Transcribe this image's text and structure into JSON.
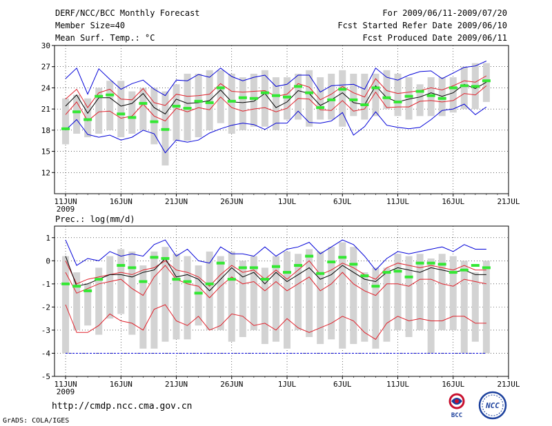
{
  "header": {
    "title": "DERF/NCC/BCC Monthly Forecast",
    "member_size": "Member Size=40",
    "variable": "Mean Surf. Temp.: °C",
    "period": "For 2009/06/11-2009/07/20",
    "started": "Fcst Started Refer Date 2009/06/10",
    "produced": "Fcst Produced Date 2009/06/11"
  },
  "footer": {
    "url": "http://cmdp.ncc.cma.gov.cn",
    "credit": "GrADS: COLA/IGES"
  },
  "logos": {
    "bcc_text": "BCC",
    "ncc_text": "NCC"
  },
  "colors": {
    "gray_bar": "#d3d3d3",
    "green_mark": "#33e833",
    "red_line": "#e0202a",
    "blue_line": "#0000d8",
    "black_line": "#000000",
    "grid": "#000000"
  },
  "chart_data": [
    {
      "type": "line",
      "title": "Mean Surf. Temp.: °C",
      "ylim": [
        9,
        30
      ],
      "yticks": [
        12,
        15,
        18,
        21,
        24,
        27,
        30
      ],
      "xticks": [
        {
          "day": 0,
          "label": "11JUN",
          "sub": "2009"
        },
        {
          "day": 5,
          "label": "16JUN"
        },
        {
          "day": 10,
          "label": "21JUN"
        },
        {
          "day": 15,
          "label": "26JUN"
        },
        {
          "day": 20,
          "label": "1JUL"
        },
        {
          "day": 25,
          "label": "6JUL"
        },
        {
          "day": 30,
          "label": "11JUL"
        },
        {
          "day": 35,
          "label": "16JUL"
        },
        {
          "day": 40,
          "label": "21JUL"
        }
      ],
      "x": [
        0,
        1,
        2,
        3,
        4,
        5,
        6,
        7,
        8,
        9,
        10,
        11,
        12,
        13,
        14,
        15,
        16,
        17,
        18,
        19,
        20,
        21,
        22,
        23,
        24,
        25,
        26,
        27,
        28,
        29,
        30,
        31,
        32,
        33,
        34,
        35,
        36,
        37,
        38
      ],
      "bar_low": [
        16.0,
        17.5,
        17.0,
        17.5,
        18.0,
        17.0,
        17.5,
        18.0,
        16.0,
        13.0,
        16.5,
        16.5,
        17.0,
        18.0,
        19.0,
        17.5,
        18.0,
        18.5,
        18.5,
        18.0,
        19.5,
        19.5,
        18.5,
        19.5,
        19.5,
        18.5,
        20.0,
        19.5,
        20.0,
        21.0,
        20.0,
        19.5,
        20.0,
        20.0,
        20.0,
        20.5,
        21.0,
        21.0,
        22.0
      ],
      "bar_high": [
        22.5,
        23.0,
        22.5,
        24.0,
        25.0,
        25.0,
        23.5,
        24.0,
        24.0,
        23.5,
        24.5,
        26.0,
        26.0,
        26.5,
        26.5,
        26.0,
        25.5,
        26.0,
        26.5,
        25.5,
        25.5,
        26.0,
        26.5,
        25.5,
        26.0,
        26.5,
        26.0,
        26.0,
        26.0,
        26.5,
        26.0,
        25.5,
        24.5,
        25.5,
        25.5,
        25.5,
        27.0,
        27.5,
        27.5
      ],
      "series": [
        {
          "name": "max",
          "color": "blue",
          "values": [
            25.3,
            26.8,
            23.1,
            26.7,
            25.2,
            23.8,
            24.6,
            25.1,
            23.8,
            22.9,
            25.1,
            25.0,
            25.9,
            25.5,
            26.8,
            25.6,
            25.0,
            25.5,
            25.8,
            24.2,
            24.5,
            25.8,
            25.8,
            23.4,
            24.3,
            24.4,
            24.5,
            23.8,
            26.8,
            25.5,
            25.1,
            25.8,
            26.3,
            26.4,
            25.3,
            26.1,
            26.9,
            27.1,
            27.8
          ]
        },
        {
          "name": "upper",
          "color": "red",
          "values": [
            22.4,
            23.8,
            21.2,
            23.3,
            23.8,
            22.4,
            22.3,
            23.9,
            21.9,
            21.5,
            23.1,
            22.8,
            22.9,
            23.1,
            24.6,
            23.5,
            23.4,
            23.5,
            23.6,
            22.8,
            23.1,
            24.6,
            24.1,
            22.3,
            23.1,
            24.2,
            23.3,
            22.7,
            25.3,
            23.6,
            23.2,
            23.4,
            23.6,
            24.0,
            23.7,
            24.3,
            25.0,
            24.8,
            25.7
          ]
        },
        {
          "name": "mean",
          "color": "black",
          "values": [
            21.4,
            23.0,
            20.4,
            22.6,
            22.6,
            21.4,
            21.8,
            23.2,
            21.2,
            20.3,
            22.4,
            21.8,
            21.9,
            22.2,
            23.7,
            22.0,
            21.9,
            22.1,
            23.2,
            21.2,
            22.0,
            23.6,
            23.2,
            21.5,
            22.3,
            23.3,
            21.9,
            21.6,
            24.3,
            22.6,
            22.0,
            22.4,
            22.7,
            23.3,
            22.8,
            23.3,
            24.5,
            23.9,
            24.8
          ]
        },
        {
          "name": "lower",
          "color": "red",
          "values": [
            20.2,
            22.0,
            19.3,
            20.6,
            20.7,
            19.7,
            20.0,
            21.7,
            20.0,
            19.3,
            21.1,
            20.6,
            21.2,
            20.9,
            22.7,
            21.2,
            20.7,
            21.0,
            21.2,
            20.6,
            21.1,
            22.5,
            22.4,
            20.9,
            20.8,
            22.2,
            20.7,
            21.0,
            23.4,
            21.2,
            21.3,
            21.3,
            22.1,
            22.2,
            22.0,
            22.2,
            23.2,
            23.0,
            24.3
          ]
        },
        {
          "name": "min",
          "color": "blue",
          "values": [
            18.0,
            19.5,
            17.4,
            17.0,
            17.3,
            16.6,
            17.0,
            18.0,
            17.5,
            14.8,
            16.6,
            16.3,
            16.6,
            17.6,
            18.2,
            18.7,
            19.0,
            18.8,
            18.1,
            19.0,
            19.0,
            20.7,
            19.1,
            19.0,
            19.3,
            20.5,
            17.3,
            18.5,
            20.6,
            18.7,
            18.4,
            18.2,
            18.4,
            19.5,
            20.8,
            21.0,
            21.7,
            20.2,
            21.3
          ]
        }
      ],
      "green_marks": [
        {
          "x": 0,
          "y": 18.2
        },
        {
          "x": 1,
          "y": 20.6
        },
        {
          "x": 2,
          "y": 19.5
        },
        {
          "x": 3,
          "y": 22.8
        },
        {
          "x": 4,
          "y": 23.0
        },
        {
          "x": 5,
          "y": 20.3
        },
        {
          "x": 6,
          "y": 19.8
        },
        {
          "x": 7,
          "y": 21.8
        },
        {
          "x": 8,
          "y": 19.2
        },
        {
          "x": 9,
          "y": 18.1
        },
        {
          "x": 10,
          "y": 21.4
        },
        {
          "x": 11,
          "y": 21.1
        },
        {
          "x": 12,
          "y": 22.1
        },
        {
          "x": 13,
          "y": 21.9
        },
        {
          "x": 14,
          "y": 24.0
        },
        {
          "x": 15,
          "y": 22.1
        },
        {
          "x": 16,
          "y": 22.6
        },
        {
          "x": 17,
          "y": 22.5
        },
        {
          "x": 18,
          "y": 23.3
        },
        {
          "x": 19,
          "y": 22.9
        },
        {
          "x": 20,
          "y": 22.7
        },
        {
          "x": 21,
          "y": 24.2
        },
        {
          "x": 22,
          "y": 23.3
        },
        {
          "x": 23,
          "y": 21.2
        },
        {
          "x": 24,
          "y": 22.3
        },
        {
          "x": 25,
          "y": 23.8
        },
        {
          "x": 26,
          "y": 22.3
        },
        {
          "x": 27,
          "y": 21.6
        },
        {
          "x": 28,
          "y": 24.0
        },
        {
          "x": 29,
          "y": 22.6
        },
        {
          "x": 30,
          "y": 22.0
        },
        {
          "x": 31,
          "y": 22.8
        },
        {
          "x": 32,
          "y": 23.5
        },
        {
          "x": 33,
          "y": 22.9
        },
        {
          "x": 34,
          "y": 22.5
        },
        {
          "x": 35,
          "y": 24.0
        },
        {
          "x": 36,
          "y": 24.3
        },
        {
          "x": 37,
          "y": 24.2
        },
        {
          "x": 38,
          "y": 25.0
        }
      ]
    },
    {
      "type": "line",
      "title": "Prec.: log(mm/d)",
      "ylim": [
        -5,
        1.5
      ],
      "yticks": [
        -5,
        -4,
        -3,
        -2,
        -1,
        0,
        1
      ],
      "xticks": [
        {
          "day": 0,
          "label": "11JUN",
          "sub": "2009"
        },
        {
          "day": 5,
          "label": "16JUN"
        },
        {
          "day": 10,
          "label": "21JUN"
        },
        {
          "day": 15,
          "label": "26JUN"
        },
        {
          "day": 20,
          "label": "1JUL"
        },
        {
          "day": 25,
          "label": "6JUL"
        },
        {
          "day": 30,
          "label": "11JUL"
        },
        {
          "day": 35,
          "label": "16JUL"
        },
        {
          "day": 40,
          "label": "21JUL"
        }
      ],
      "x": [
        0,
        1,
        2,
        3,
        4,
        5,
        6,
        7,
        8,
        9,
        10,
        11,
        12,
        13,
        14,
        15,
        16,
        17,
        18,
        19,
        20,
        21,
        22,
        23,
        24,
        25,
        26,
        27,
        28,
        29,
        30,
        31,
        32,
        33,
        34,
        35,
        36,
        37,
        38
      ],
      "bar_low": [
        -4.0,
        -3.0,
        -2.8,
        -3.2,
        -2.5,
        -2.3,
        -3.2,
        -3.8,
        -3.8,
        -3.5,
        -3.4,
        -3.4,
        -2.8,
        -3.0,
        -3.0,
        -3.5,
        -3.3,
        -3.0,
        -3.6,
        -3.5,
        -3.8,
        -3.0,
        -3.3,
        -3.6,
        -3.4,
        -3.8,
        -3.6,
        -3.5,
        -3.8,
        -3.5,
        -3.0,
        -3.3,
        -3.0,
        -4.0,
        -3.0,
        -3.0,
        -4.0,
        -3.5,
        -4.0
      ],
      "bar_high": [
        0.2,
        -0.5,
        -1.0,
        -0.3,
        0.2,
        0.5,
        0.4,
        -0.2,
        0.4,
        0.6,
        0.3,
        0.2,
        -0.2,
        0.4,
        0.2,
        0.4,
        0.0,
        0.2,
        -0.3,
        0.2,
        0.4,
        0.3,
        0.5,
        0.4,
        0.6,
        0.8,
        0.6,
        -0.5,
        -0.3,
        -0.3,
        0.3,
        0.2,
        0.3,
        0.1,
        0.3,
        0.2,
        0.0,
        -0.5,
        0.0
      ],
      "series": [
        {
          "name": "max",
          "color": "blue",
          "values": [
            0.9,
            -0.2,
            0.1,
            0.0,
            0.4,
            0.2,
            0.3,
            0.2,
            0.7,
            0.9,
            0.2,
            0.5,
            0.0,
            -0.1,
            0.6,
            0.3,
            0.3,
            0.2,
            0.6,
            0.2,
            0.5,
            0.6,
            0.8,
            0.3,
            0.6,
            0.9,
            0.7,
            0.2,
            -0.4,
            0.1,
            0.4,
            0.3,
            0.4,
            0.5,
            0.6,
            0.4,
            0.7,
            0.5,
            0.5
          ]
        },
        {
          "name": "upper",
          "color": "red",
          "values": [
            0.0,
            -1.0,
            -0.8,
            -0.7,
            -0.6,
            -0.5,
            -0.6,
            -0.4,
            -0.3,
            0.0,
            -0.4,
            -0.5,
            -0.7,
            -1.1,
            -0.6,
            -0.2,
            -0.5,
            -0.4,
            -0.8,
            -0.4,
            -0.8,
            -0.4,
            0.0,
            -0.6,
            -0.4,
            -0.1,
            -0.3,
            -0.6,
            -0.8,
            -0.3,
            -0.1,
            -0.2,
            -0.3,
            -0.2,
            -0.3,
            -0.4,
            -0.2,
            -0.4,
            -0.4
          ]
        },
        {
          "name": "mean",
          "color": "black",
          "values": [
            0.2,
            -1.1,
            -1.0,
            -0.8,
            -0.6,
            -0.6,
            -0.7,
            -0.5,
            -0.4,
            0.1,
            -0.7,
            -0.6,
            -0.8,
            -1.3,
            -0.8,
            -0.3,
            -0.7,
            -0.5,
            -1.0,
            -0.5,
            -0.9,
            -0.6,
            -0.3,
            -0.8,
            -0.6,
            -0.2,
            -0.5,
            -0.8,
            -0.9,
            -0.5,
            -0.3,
            -0.4,
            -0.5,
            -0.3,
            -0.4,
            -0.5,
            -0.4,
            -0.6,
            -0.6
          ]
        },
        {
          "name": "lower",
          "color": "red",
          "values": [
            -0.5,
            -1.4,
            -1.2,
            -1.0,
            -0.9,
            -0.8,
            -1.2,
            -1.5,
            -0.7,
            -0.2,
            -0.8,
            -1.0,
            -1.1,
            -1.6,
            -1.1,
            -0.7,
            -1.0,
            -0.9,
            -1.3,
            -0.9,
            -1.3,
            -1.0,
            -0.7,
            -1.3,
            -1.0,
            -0.5,
            -1.0,
            -1.3,
            -1.5,
            -1.0,
            -1.0,
            -1.1,
            -0.8,
            -0.8,
            -1.0,
            -1.1,
            -0.8,
            -0.9,
            -1.0
          ]
        },
        {
          "name": "min_red",
          "color": "red",
          "values": [
            -1.9,
            -3.1,
            -3.1,
            -2.8,
            -2.3,
            -2.6,
            -2.7,
            -3.0,
            -2.1,
            -1.9,
            -2.6,
            -2.8,
            -2.4,
            -3.0,
            -2.8,
            -2.3,
            -2.4,
            -2.8,
            -2.7,
            -3.0,
            -2.5,
            -2.9,
            -3.1,
            -2.9,
            -2.7,
            -2.4,
            -2.6,
            -3.1,
            -3.4,
            -2.7,
            -2.4,
            -2.6,
            -2.5,
            -2.6,
            -2.6,
            -2.4,
            -2.4,
            -2.7,
            -2.7
          ]
        },
        {
          "name": "min_blue",
          "color": "blue",
          "values": [
            -4.0,
            -4.0,
            -4.0,
            -4.0,
            -4.0,
            -4.0,
            -4.0,
            -4.0,
            -4.0,
            -4.0,
            -4.0,
            -4.0,
            -4.0,
            -4.0,
            -4.0,
            -4.0,
            -4.0,
            -4.0,
            -4.0,
            -4.0,
            -4.0,
            -4.0,
            -4.0,
            -4.0,
            -4.0,
            -4.0,
            -4.0,
            -4.0,
            -4.0,
            -4.0,
            -4.0,
            -4.0,
            -4.0,
            -4.0,
            -4.0,
            -4.0,
            -4.0,
            -4.0,
            -4.0
          ],
          "dashed": true
        }
      ],
      "green_marks": [
        {
          "x": 0,
          "y": -1.0
        },
        {
          "x": 1,
          "y": -1.1
        },
        {
          "x": 2,
          "y": -1.3
        },
        {
          "x": 3,
          "y": -0.8
        },
        {
          "x": 5,
          "y": -0.2
        },
        {
          "x": 6,
          "y": -0.3
        },
        {
          "x": 7,
          "y": -0.9
        },
        {
          "x": 8,
          "y": 0.15
        },
        {
          "x": 9,
          "y": 0.1
        },
        {
          "x": 10,
          "y": -0.8
        },
        {
          "x": 11,
          "y": -0.9
        },
        {
          "x": 12,
          "y": -1.4
        },
        {
          "x": 13,
          "y": -1.0
        },
        {
          "x": 14,
          "y": -0.1
        },
        {
          "x": 15,
          "y": -0.8
        },
        {
          "x": 16,
          "y": -0.3
        },
        {
          "x": 17,
          "y": -0.3
        },
        {
          "x": 18,
          "y": -0.8
        },
        {
          "x": 19,
          "y": -0.25
        },
        {
          "x": 20,
          "y": -0.5
        },
        {
          "x": 21,
          "y": -0.2
        },
        {
          "x": 22,
          "y": 0.2
        },
        {
          "x": 23,
          "y": -0.55
        },
        {
          "x": 24,
          "y": -0.05
        },
        {
          "x": 25,
          "y": 0.15
        },
        {
          "x": 26,
          "y": -0.15
        },
        {
          "x": 27,
          "y": -0.65
        },
        {
          "x": 28,
          "y": -1.1
        },
        {
          "x": 29,
          "y": -0.5
        },
        {
          "x": 30,
          "y": -0.45
        },
        {
          "x": 31,
          "y": -0.7
        },
        {
          "x": 32,
          "y": -0.1
        },
        {
          "x": 33,
          "y": -0.1
        },
        {
          "x": 34,
          "y": -0.15
        },
        {
          "x": 35,
          "y": -0.5
        },
        {
          "x": 36,
          "y": -0.4
        },
        {
          "x": 37,
          "y": -0.2
        },
        {
          "x": 38,
          "y": -0.3
        }
      ]
    }
  ]
}
